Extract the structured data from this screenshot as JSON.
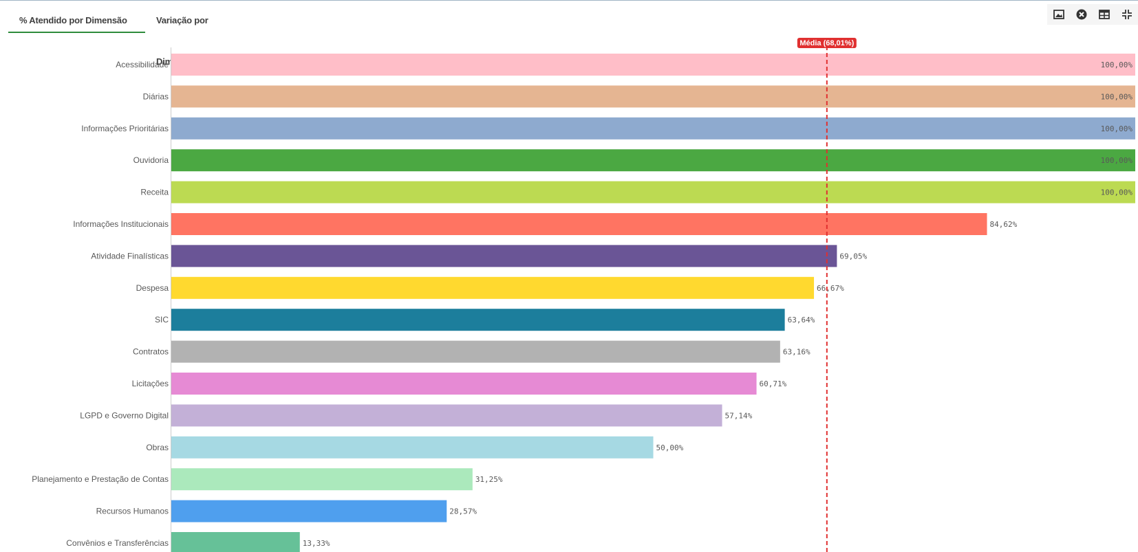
{
  "tabs": [
    {
      "label": "% Atendido por Dimensão",
      "active": true
    },
    {
      "label": "Variação por Dimensão",
      "active": false
    }
  ],
  "toolbar": {
    "icons": [
      "image-icon",
      "close-circle-icon",
      "table-icon",
      "collapse-icon"
    ]
  },
  "colors": {
    "accent": "#2e8b3c",
    "reference_line": "#e03030"
  },
  "chart_data": {
    "type": "bar",
    "orientation": "horizontal",
    "categories": [
      "Acessibilidade",
      "Diárias",
      "Informações Prioritárias",
      "Ouvidoria",
      "Receita",
      "Informações Institucionais",
      "Atividade Finalísticas",
      "Despesa",
      "SIC",
      "Contratos",
      "Licitações",
      "LGPD e Governo Digital",
      "Obras",
      "Planejamento e Prestação de Contas",
      "Recursos Humanos",
      "Convênios e Transferências"
    ],
    "values": [
      100,
      100,
      100,
      100,
      100,
      84.62,
      69.05,
      66.67,
      63.64,
      63.16,
      60.71,
      57.14,
      50.0,
      31.25,
      28.57,
      13.33
    ],
    "value_labels": [
      "100,00%",
      "100,00%",
      "100,00%",
      "100,00%",
      "100,00%",
      "84,62%",
      "69,05%",
      "66,67%",
      "63,64%",
      "63,16%",
      "60,71%",
      "57,14%",
      "50,00%",
      "31,25%",
      "28,57%",
      "13,33%"
    ],
    "colors": [
      "#ffbec8",
      "#e5b592",
      "#8eaacf",
      "#4ba842",
      "#bcda52",
      "#ff7462",
      "#6a5596",
      "#ffd92f",
      "#1c7e9c",
      "#b2b2b2",
      "#e68ad4",
      "#c3b0d7",
      "#a6d9e3",
      "#abe9bc",
      "#4f9fee",
      "#66c198"
    ],
    "xlim": [
      0,
      100
    ],
    "reference_line": {
      "label": "Média (68,01%)",
      "value": 68.01
    },
    "grid": false
  }
}
